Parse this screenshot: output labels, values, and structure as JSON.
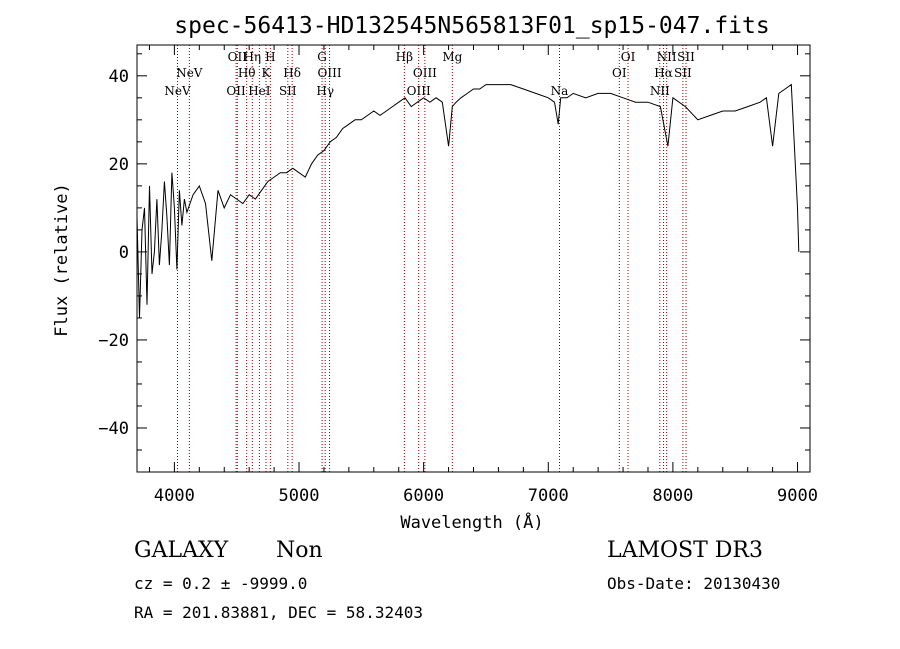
{
  "chart_data": {
    "type": "line",
    "title": "spec-56413-HD132545N565813F01_sp15-047.fits",
    "xlabel": "Wavelength (Å)",
    "ylabel": "Flux (relative)",
    "xlim": [
      3700,
      9100
    ],
    "ylim": [
      -50,
      47
    ],
    "xticks": [
      4000,
      5000,
      6000,
      7000,
      8000,
      9000
    ],
    "yticks": [
      -40,
      -20,
      0,
      20,
      40
    ],
    "series": [
      {
        "name": "flux",
        "x": [
          3700,
          3720,
          3740,
          3760,
          3780,
          3800,
          3820,
          3840,
          3860,
          3880,
          3900,
          3920,
          3940,
          3960,
          3980,
          4000,
          4020,
          4040,
          4060,
          4080,
          4100,
          4150,
          4200,
          4250,
          4300,
          4350,
          4400,
          4450,
          4500,
          4550,
          4600,
          4650,
          4700,
          4750,
          4800,
          4850,
          4900,
          4950,
          5000,
          5050,
          5100,
          5150,
          5200,
          5250,
          5300,
          5350,
          5400,
          5450,
          5500,
          5550,
          5600,
          5650,
          5700,
          5750,
          5800,
          5850,
          5900,
          5950,
          6000,
          6050,
          6100,
          6150,
          6200,
          6230,
          6260,
          6300,
          6350,
          6400,
          6450,
          6500,
          6600,
          6700,
          6800,
          6900,
          7000,
          7050,
          7080,
          7100,
          7150,
          7200,
          7300,
          7400,
          7500,
          7600,
          7700,
          7800,
          7900,
          7960,
          8000,
          8100,
          8200,
          8300,
          8400,
          8500,
          8600,
          8700,
          8750,
          8800,
          8850,
          8900,
          8950,
          9000,
          9010
        ],
        "y": [
          8,
          -15,
          5,
          10,
          -12,
          15,
          -5,
          0,
          12,
          -3,
          5,
          16,
          8,
          -3,
          18,
          10,
          -4,
          14,
          6,
          12,
          9,
          13,
          15,
          11,
          -2,
          14,
          10,
          13,
          12,
          11,
          13,
          12,
          14,
          16,
          17,
          18,
          18,
          19,
          18,
          17,
          20,
          22,
          23,
          25,
          26,
          28,
          29,
          30,
          30,
          31,
          32,
          31,
          32,
          33,
          34,
          35,
          33,
          34,
          35,
          34,
          35,
          34,
          24,
          33,
          34,
          35,
          36,
          37,
          37,
          38,
          38,
          38,
          37,
          36,
          35,
          34,
          29,
          35,
          35,
          36,
          35,
          36,
          36,
          35,
          34,
          34,
          33,
          24,
          35,
          33,
          30,
          31,
          32,
          32,
          33,
          34,
          35,
          24,
          36,
          37,
          38,
          10,
          0
        ]
      }
    ],
    "lines": [
      {
        "label": "NeV",
        "wl": 4025,
        "row": 3
      },
      {
        "label": "NeV",
        "wl": 4120,
        "row": 2
      },
      {
        "label": "OII",
        "wl": 4495,
        "row": 3
      },
      {
        "label": "OII",
        "wl": 4505,
        "row": 1
      },
      {
        "label": "Hθ",
        "wl": 4580,
        "row": 2
      },
      {
        "label": "Hη",
        "wl": 4625,
        "row": 1
      },
      {
        "label": "HeI",
        "wl": 4682,
        "row": 3
      },
      {
        "label": "K",
        "wl": 4735,
        "row": 2
      },
      {
        "label": "H",
        "wl": 4770,
        "row": 1
      },
      {
        "label": "SII",
        "wl": 4910,
        "row": 3
      },
      {
        "label": "Hδ",
        "wl": 4945,
        "row": 2
      },
      {
        "label": "G",
        "wl": 5185,
        "row": 1
      },
      {
        "label": "Hγ",
        "wl": 5210,
        "row": 3
      },
      {
        "label": "OIII",
        "wl": 5245,
        "row": 2
      },
      {
        "label": "Hβ",
        "wl": 5845,
        "row": 1
      },
      {
        "label": "OIII",
        "wl": 5960,
        "row": 3
      },
      {
        "label": "OIII",
        "wl": 6010,
        "row": 2
      },
      {
        "label": "Mg",
        "wl": 6230,
        "row": 1
      },
      {
        "label": "Na",
        "wl": 7090,
        "row": 3
      },
      {
        "label": "OI",
        "wl": 7570,
        "row": 2
      },
      {
        "label": "OI",
        "wl": 7640,
        "row": 1
      },
      {
        "label": "NII",
        "wl": 7895,
        "row": 3
      },
      {
        "label": "Hα",
        "wl": 7925,
        "row": 2
      },
      {
        "label": "NII",
        "wl": 7950,
        "row": 1
      },
      {
        "label": "SII",
        "wl": 8080,
        "row": 2
      },
      {
        "label": "SII",
        "wl": 8105,
        "row": 1
      }
    ]
  },
  "info": {
    "object_class": "GALAXY",
    "subclass": "Non",
    "survey": "LAMOST DR3",
    "redshift_line": "cz = 0.2 ± -9999.0",
    "obs_date": "Obs-Date: 20130430",
    "coords": "RA = 201.83881, DEC =  58.32403"
  },
  "colors": {
    "spectrum": "#000000",
    "line_marker": "#990000",
    "axis": "#000000"
  }
}
